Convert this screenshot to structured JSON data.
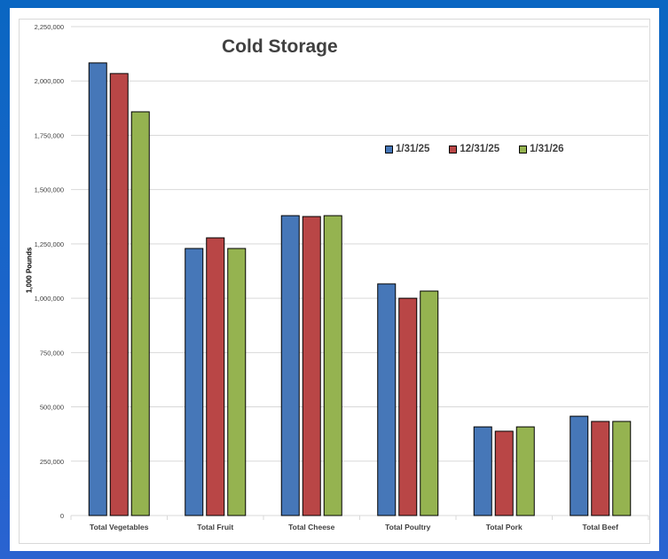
{
  "chart_data": {
    "type": "bar",
    "title": "Cold Storage",
    "xlabel": "",
    "ylabel": "1,000 Pounds",
    "ylim": [
      0,
      2250000
    ],
    "yticks": [
      "0",
      "250,000",
      "500,000",
      "750,000",
      "1,000,000",
      "1,250,000",
      "1,500,000",
      "1,750,000",
      "2,000,000",
      "2,250,000"
    ],
    "ytick_values": [
      0,
      250000,
      500000,
      750000,
      1000000,
      1250000,
      1500000,
      1750000,
      2000000,
      2250000
    ],
    "grid": true,
    "legend_position": "top-right",
    "categories": [
      "Total Vegetables",
      "Total Fruit",
      "Total Cheese",
      "Total Poultry",
      "Total Pork",
      "Total Beef"
    ],
    "series": [
      {
        "name": "1/31/25",
        "color": "#4677b8",
        "values": [
          2083000,
          1229000,
          1380000,
          1066000,
          408000,
          457000
        ]
      },
      {
        "name": "12/31/25",
        "color": "#b94646",
        "values": [
          2034000,
          1278000,
          1376000,
          1000000,
          388000,
          433000
        ]
      },
      {
        "name": "1/31/26",
        "color": "#95b350",
        "values": [
          1858000,
          1229000,
          1380000,
          1033000,
          408000,
          433000
        ]
      }
    ]
  }
}
